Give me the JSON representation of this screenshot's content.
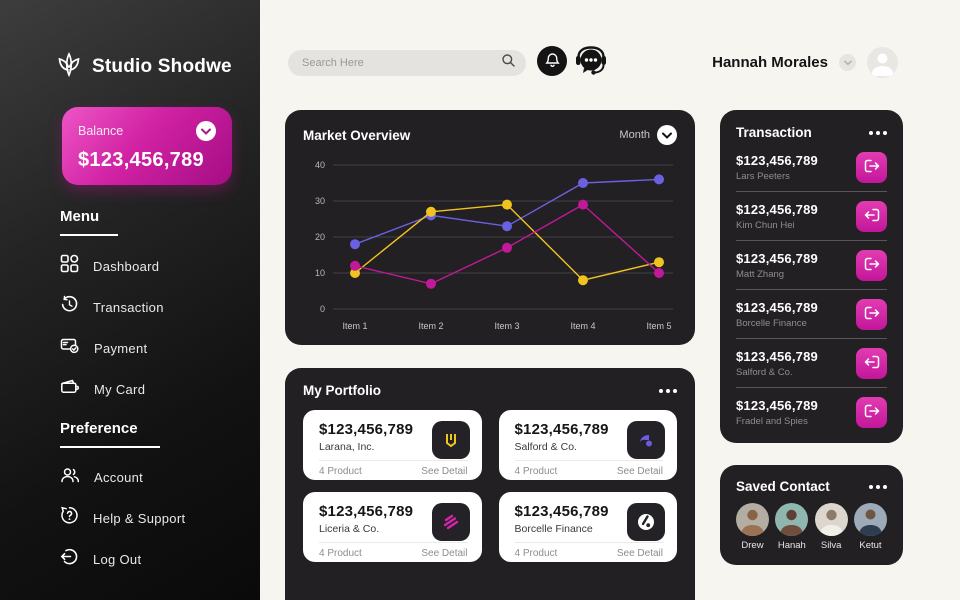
{
  "sidebar": {
    "brand": "Studio Shodwe",
    "balance": {
      "label": "Balance",
      "amount": "$123,456,789"
    },
    "menu_heading": "Menu",
    "menu": [
      {
        "icon": "dashboard-icon",
        "label": "Dashboard"
      },
      {
        "icon": "transaction-icon",
        "label": "Transaction"
      },
      {
        "icon": "payment-icon",
        "label": "Payment"
      },
      {
        "icon": "my-card-icon",
        "label": "My Card"
      }
    ],
    "preference_heading": "Preference",
    "preference": [
      {
        "icon": "account-icon",
        "label": "Account"
      },
      {
        "icon": "help-icon",
        "label": "Help & Support"
      },
      {
        "icon": "logout-icon",
        "label": "Log Out"
      }
    ]
  },
  "header": {
    "search_placeholder": "Search Here",
    "user_name": "Hannah Morales"
  },
  "market_overview": {
    "title": "Market Overview",
    "period": "Month"
  },
  "chart_data": {
    "type": "line",
    "title": "Market Overview",
    "categories": [
      "Item 1",
      "Item 2",
      "Item 3",
      "Item 4",
      "Item 5"
    ],
    "series": [
      {
        "name": "blue",
        "color": "#6a61e0",
        "values": [
          18,
          26,
          23,
          35,
          36
        ]
      },
      {
        "name": "yellow",
        "color": "#f0c31f",
        "values": [
          10,
          27,
          29,
          8,
          13
        ]
      },
      {
        "name": "magenta",
        "color": "#c2189a",
        "values": [
          12,
          7,
          17,
          29,
          10
        ]
      }
    ],
    "xlabel": "",
    "ylabel": "",
    "ylim": [
      0,
      40
    ],
    "yticks": [
      0,
      10,
      20,
      30,
      40
    ],
    "grid": "horizontal",
    "legend": "none"
  },
  "portfolio": {
    "title": "My Portfolio",
    "cards": [
      {
        "amount": "$123,456,789",
        "company": "Larana, Inc.",
        "products": "4 Product",
        "action": "See Detail",
        "icon": "larana-logo"
      },
      {
        "amount": "$123,456,789",
        "company": "Salford & Co.",
        "products": "4 Product",
        "action": "See Detail",
        "icon": "salford-logo"
      },
      {
        "amount": "$123,456,789",
        "company": "Liceria & Co.",
        "products": "4 Product",
        "action": "See Detail",
        "icon": "liceria-logo"
      },
      {
        "amount": "$123,456,789",
        "company": "Borcelle Finance",
        "products": "4 Product",
        "action": "See Detail",
        "icon": "borcelle-logo"
      }
    ]
  },
  "transactions": {
    "title": "Transaction",
    "items": [
      {
        "amount": "$123,456,789",
        "name": "Lars Peeters",
        "direction": "out"
      },
      {
        "amount": "$123,456,789",
        "name": "Kim Chun Hei",
        "direction": "in"
      },
      {
        "amount": "$123,456,789",
        "name": "Matt Zhang",
        "direction": "out"
      },
      {
        "amount": "$123,456,789",
        "name": "Borcelle Finance",
        "direction": "out"
      },
      {
        "amount": "$123,456,789",
        "name": "Salford & Co.",
        "direction": "in"
      },
      {
        "amount": "$123,456,789",
        "name": "Fradel and Spies",
        "direction": "out"
      }
    ]
  },
  "saved_contacts": {
    "title": "Saved Contact",
    "contacts": [
      {
        "name": "Drew"
      },
      {
        "name": "Hanah"
      },
      {
        "name": "Silva"
      },
      {
        "name": "Ketut"
      }
    ]
  },
  "colors": {
    "accent_pink": "#c2169a",
    "balance_gradient_start": "#ee55c6",
    "balance_gradient_end": "#a50d84",
    "panel_dark": "#222023",
    "page_background": "#f7f5f0",
    "chart_blue": "#6a61e0",
    "chart_yellow": "#f0c31f",
    "chart_magenta": "#c2189a"
  }
}
